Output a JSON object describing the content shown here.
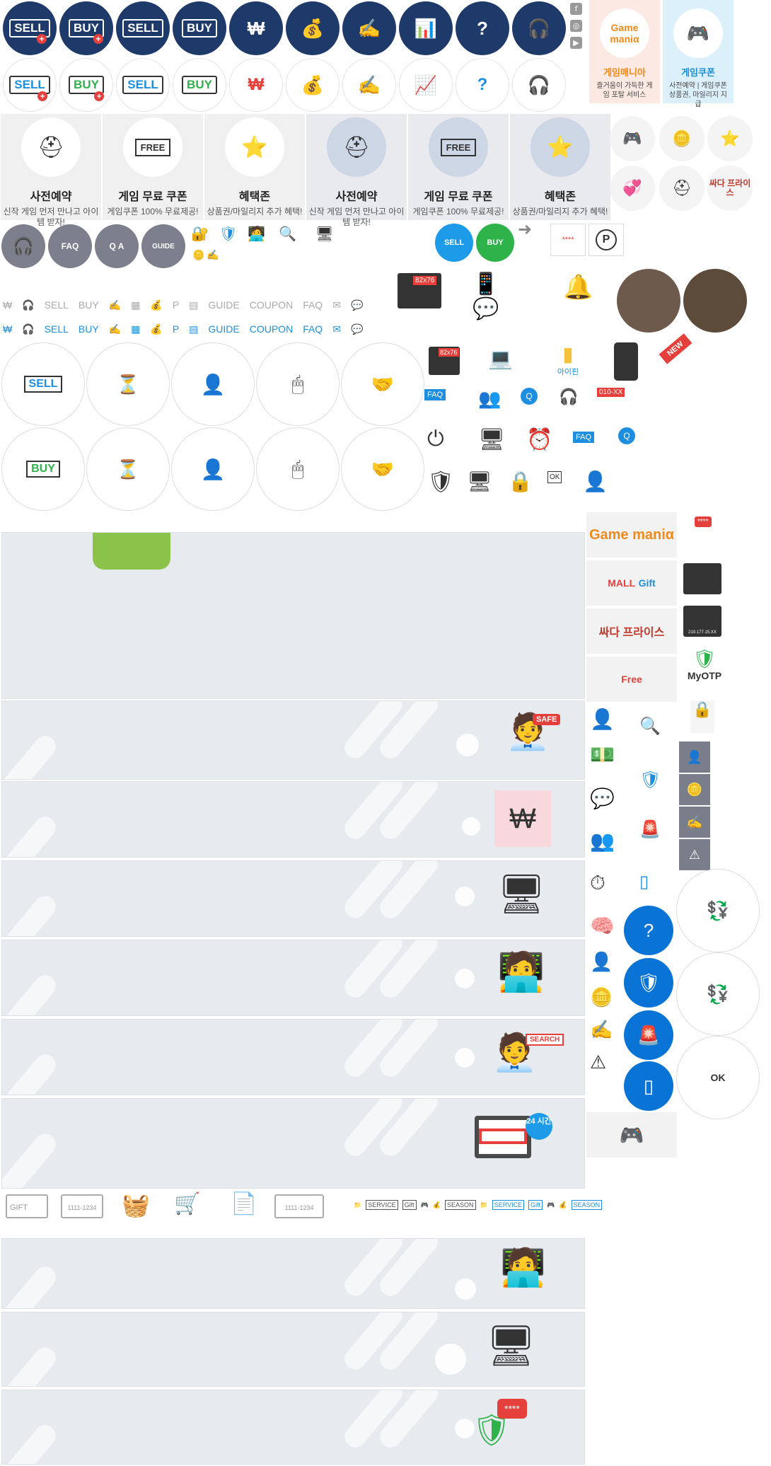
{
  "top_icons": {
    "sell": "SELL",
    "buy": "BUY",
    "won": "₩",
    "social": [
      "f",
      "◎",
      "▶"
    ]
  },
  "promo": {
    "gamemania_logo": "Game maniα",
    "gamemania_title": "게임매니아",
    "gamemania_sub": "즐거움이 가득한 게임 포탈 서비스",
    "coupon_title": "게임쿠폰",
    "coupon_sub": "사전예약 | 게임쿠폰 상품권, 마일리지 지급"
  },
  "cards": [
    {
      "title": "사전예약",
      "sub": "신작 게임 먼저 만나고 아이템 받자!"
    },
    {
      "title": "게임 무료 쿠폰",
      "sub": "게임쿠폰 100% 무료제공!",
      "badge": "FREE"
    },
    {
      "title": "혜택존",
      "sub": "상품권/마일리지 추가 혜택!"
    },
    {
      "title": "사전예약",
      "sub": "신작 게임 먼저 만나고 아이템 받자!"
    },
    {
      "title": "게임 무료 쿠폰",
      "sub": "게임쿠폰 100% 무료제공!",
      "badge": "FREE"
    },
    {
      "title": "혜택존",
      "sub": "상품권/마일리지 추가 혜택!"
    }
  ],
  "misc_labels": {
    "faq": "FAQ",
    "qa": "Q A",
    "guide": "GUIDE",
    "coupon": "COUPON",
    "search": "SEARCH",
    "ok": "OK",
    "p": "P",
    "size": "82x76",
    "password": "****",
    "new": "NEW",
    "iinpen": "아이핀",
    "phone": "010-XX",
    "safe": "SAFE",
    "hours": "24 시간",
    "gift": "Gift",
    "mall": "MALL",
    "free": "Free",
    "ssada": "싸다 프라이스",
    "myotp": "MyOTP",
    "ip": "210.177.15.XX",
    "card_num": "1111-1234",
    "gift_card": "GIFT",
    "service": "SERVICE",
    "season": "SEASON"
  },
  "colors": {
    "navy": "#1e3a6b",
    "red": "#e5403b",
    "blue": "#0a74d6",
    "green": "#2db34a",
    "orange": "#f08a1c",
    "banner_bg": "#e7eaef"
  }
}
